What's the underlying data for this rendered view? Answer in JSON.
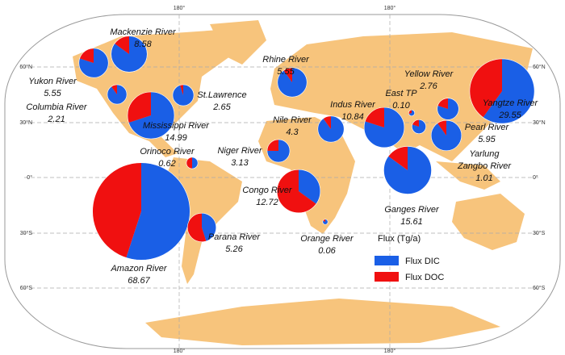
{
  "graticule": {
    "latitudes": [
      "60°N",
      "30°N",
      "0°",
      "30°S",
      "60°S"
    ],
    "longitudes": [
      "180°",
      "180°"
    ]
  },
  "legend": {
    "title": "Flux (Tg/a)",
    "dic": {
      "label": "Flux DIC",
      "color": "#1a5fe6"
    },
    "doc": {
      "label": "Flux DOC",
      "color": "#f01010"
    }
  },
  "rivers": [
    {
      "name": "Mackenzie River",
      "flux": 8.58,
      "dic": 7.29,
      "doc": 1.29
    },
    {
      "name": "Yukon River",
      "flux": 5.55,
      "dic": 4.44,
      "doc": 1.11
    },
    {
      "name": "Columbia River",
      "flux": 2.21,
      "dic": 1.99,
      "doc": 0.22
    },
    {
      "name": "St.Lawrence",
      "flux": 2.65,
      "dic": 2.52,
      "doc": 0.13
    },
    {
      "name": "Mississippi River",
      "flux": 14.99,
      "dic": 10.49,
      "doc": 4.5
    },
    {
      "name": "Orinoco River",
      "flux": 0.62,
      "dic": 0.31,
      "doc": 0.31
    },
    {
      "name": "Amazon  River",
      "flux": 68.67,
      "dic": 37.77,
      "doc": 30.9
    },
    {
      "name": "Parana River",
      "flux": 5.26,
      "dic": 2.37,
      "doc": 2.89
    },
    {
      "name": "Rhine River",
      "flux": 5.55,
      "dic": 5.0,
      "doc": 0.55
    },
    {
      "name": "Nile River",
      "flux": 4.3,
      "dic": 3.87,
      "doc": 0.43
    },
    {
      "name": "Niger River",
      "flux": 3.13,
      "dic": 2.35,
      "doc": 0.78
    },
    {
      "name": "Congo River",
      "flux": 12.72,
      "dic": 4.45,
      "doc": 8.27
    },
    {
      "name": "Orange River",
      "flux": 0.06,
      "dic": 0.05,
      "doc": 0.01
    },
    {
      "name": "Indus River",
      "flux": 10.84,
      "dic": 8.67,
      "doc": 2.17
    },
    {
      "name": "East TP",
      "flux": 0.1,
      "value_label": "0.10",
      "dic": 0.07,
      "doc": 0.03
    },
    {
      "name": "Ganges River",
      "flux": 15.61,
      "dic": 13.27,
      "doc": 2.34
    },
    {
      "name": "Yellow River",
      "flux": 2.76,
      "dic": 2.21,
      "doc": 0.55
    },
    {
      "name": "Yangtze River",
      "flux": 29.55,
      "dic": 17.73,
      "doc": 11.82
    },
    {
      "name": "Pearl River",
      "flux": 5.95,
      "dic": 5.36,
      "doc": 0.59
    },
    {
      "name": [
        "Yarlung",
        "Zangbo River"
      ],
      "flux": 1.01,
      "dic": 0.81,
      "doc": 0.2
    }
  ]
}
